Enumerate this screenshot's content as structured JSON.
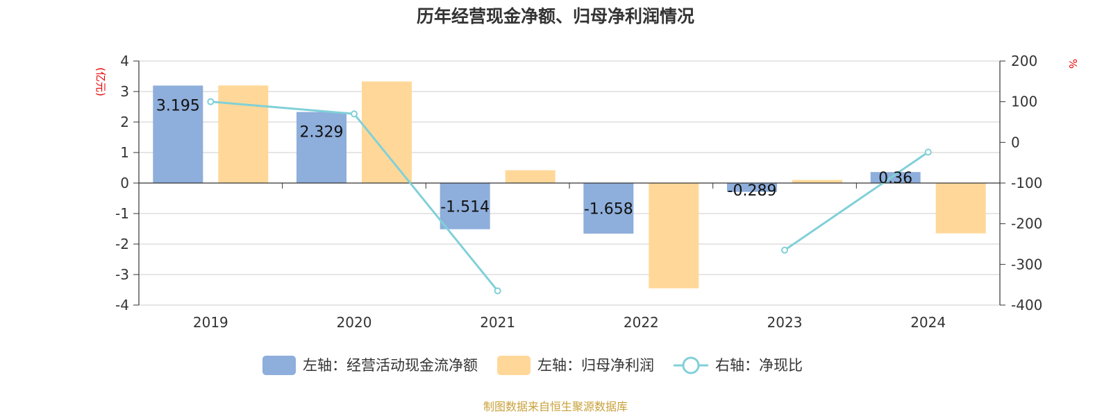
{
  "chart_data": {
    "type": "bar",
    "title": "历年经营现金净额、归母净利润情况",
    "categories": [
      "2019",
      "2020",
      "2021",
      "2022",
      "2023",
      "2024"
    ],
    "left_axis": {
      "unit": "(亿元)",
      "ylim": [
        -4,
        4
      ],
      "ticks": [
        "4",
        "3",
        "2",
        "1",
        "0",
        "-1",
        "-2",
        "-3",
        "-4"
      ]
    },
    "right_axis": {
      "unit": "%",
      "ylim": [
        -400,
        200
      ],
      "ticks": [
        "200",
        "100",
        "0",
        "-100",
        "-200",
        "-300",
        "-400"
      ]
    },
    "series": [
      {
        "name": "左轴：经营活动现金流净额",
        "type": "bar",
        "axis": "left",
        "color": "#8eaedb",
        "values": [
          3.195,
          2.329,
          -1.514,
          -1.658,
          -0.289,
          0.36
        ],
        "labels": [
          "3.195",
          "2.329",
          "-1.514",
          "-1.658",
          "-0.289",
          "0.36"
        ]
      },
      {
        "name": "左轴：归母净利润",
        "type": "bar",
        "axis": "left",
        "color": "#ffd899",
        "values": [
          3.2,
          3.33,
          0.42,
          -3.45,
          0.1,
          -1.65
        ]
      },
      {
        "name": "右轴：净现比",
        "type": "line",
        "axis": "right",
        "color": "#80d0d8",
        "values": [
          100,
          70,
          -365,
          null,
          -265,
          -24
        ]
      }
    ],
    "grid": true,
    "legend_position": "bottom",
    "source": "制图数据来自恒生聚源数据库"
  }
}
